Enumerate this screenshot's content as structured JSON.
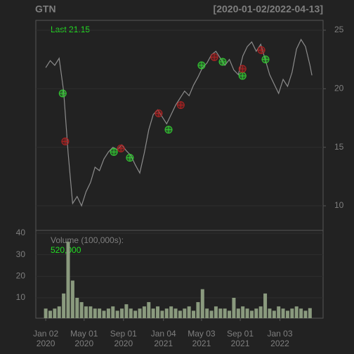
{
  "chart_data": [
    {
      "type": "line",
      "title": "GTN",
      "subtitle": "[2020-01-02/2022-04-13]",
      "annotation": "Last 21.15",
      "x": [
        "2020-01-02",
        "2020-01-16",
        "2020-01-30",
        "2020-02-13",
        "2020-02-27",
        "2020-03-12",
        "2020-03-26",
        "2020-04-09",
        "2020-04-23",
        "2020-05-07",
        "2020-05-21",
        "2020-06-04",
        "2020-06-18",
        "2020-07-02",
        "2020-07-16",
        "2020-07-30",
        "2020-08-13",
        "2020-08-27",
        "2020-09-10",
        "2020-09-24",
        "2020-10-08",
        "2020-10-22",
        "2020-11-05",
        "2020-11-19",
        "2020-12-03",
        "2020-12-17",
        "2020-12-31",
        "2021-01-14",
        "2021-01-28",
        "2021-02-11",
        "2021-02-25",
        "2021-03-11",
        "2021-03-25",
        "2021-04-08",
        "2021-04-22",
        "2021-05-06",
        "2021-05-20",
        "2021-06-03",
        "2021-06-17",
        "2021-07-01",
        "2021-07-15",
        "2021-07-29",
        "2021-08-12",
        "2021-08-26",
        "2021-09-09",
        "2021-09-23",
        "2021-10-07",
        "2021-10-21",
        "2021-11-04",
        "2021-11-18",
        "2021-12-02",
        "2021-12-16",
        "2021-12-30",
        "2022-01-13",
        "2022-01-27",
        "2022-02-10",
        "2022-02-24",
        "2022-03-10",
        "2022-03-24",
        "2022-04-07",
        "2022-04-13"
      ],
      "series": [
        {
          "color": "#8c8c8c",
          "values": [
            21.8,
            22.4,
            22.0,
            22.6,
            19.8,
            14.5,
            10.2,
            10.8,
            10.0,
            11.2,
            12.0,
            13.3,
            13.0,
            14.0,
            14.6,
            15.0,
            14.8,
            15.2,
            14.7,
            14.3,
            13.5,
            12.8,
            14.5,
            16.5,
            17.8,
            18.2,
            17.6,
            17.0,
            17.8,
            18.6,
            19.2,
            19.8,
            19.4,
            20.3,
            21.0,
            21.8,
            22.2,
            22.9,
            23.2,
            22.6,
            22.0,
            22.5,
            21.6,
            21.2,
            22.8,
            23.6,
            24.0,
            23.2,
            23.8,
            22.5,
            21.2,
            20.4,
            19.6,
            20.8,
            20.2,
            21.4,
            23.4,
            24.2,
            23.6,
            22.0,
            21.15
          ]
        }
      ],
      "markers": [
        {
          "color": "#33cc33",
          "x": [
            "2020-02-24",
            "2020-08-02",
            "2020-09-21",
            "2021-01-20",
            "2021-05-03",
            "2021-07-08",
            "2021-09-08",
            "2021-11-19"
          ],
          "values": [
            19.6,
            14.6,
            14.1,
            16.5,
            22.0,
            22.3,
            21.1,
            22.5
          ]
        },
        {
          "color": "#b22222",
          "x": [
            "2020-03-03",
            "2020-08-24",
            "2020-12-20",
            "2021-02-27",
            "2021-06-12",
            "2021-09-08",
            "2021-11-06"
          ],
          "values": [
            15.5,
            14.9,
            17.9,
            18.6,
            22.7,
            21.7,
            23.3
          ]
        }
      ],
      "xlim": [
        "2019-12-02",
        "2022-05-18"
      ],
      "ylim": [
        7.9,
        25.84
      ],
      "yticks": [
        10,
        15,
        20,
        25
      ],
      "grid": true
    },
    {
      "type": "bar",
      "annotation": "Volume (100,000s):",
      "last_label": {
        "value": 5.2,
        "label": "520,000"
      },
      "color": "#8a9a7e",
      "values": [
        5,
        4,
        5,
        6,
        12,
        36,
        18,
        10,
        8,
        6,
        6,
        5,
        5,
        4,
        5,
        6,
        4,
        5,
        7,
        5,
        4,
        5,
        6,
        8,
        5,
        6,
        4,
        5,
        6,
        5,
        4,
        5,
        6,
        4,
        8,
        14,
        5,
        4,
        6,
        5,
        5,
        4,
        10,
        5,
        6,
        5,
        4,
        5,
        6,
        12,
        5,
        4,
        6,
        5,
        4,
        5,
        6,
        5,
        4,
        5.2
      ],
      "ylim": [
        0.54,
        41.3
      ],
      "yticks": [
        10,
        20,
        30,
        40
      ],
      "xticks": [
        {
          "value": "2020-01-02",
          "label": [
            "Jan 02",
            "2020"
          ]
        },
        {
          "value": "2020-05-01",
          "label": [
            "May 01",
            "2020"
          ]
        },
        {
          "value": "2020-09-01",
          "label": [
            "Sep 01",
            "2020"
          ]
        },
        {
          "value": "2021-01-04",
          "label": [
            "Jan 04",
            "2021"
          ]
        },
        {
          "value": "2021-05-03",
          "label": [
            "May 03",
            "2021"
          ]
        },
        {
          "value": "2021-09-01",
          "label": [
            "Sep 01",
            "2021"
          ]
        },
        {
          "value": "2022-01-03",
          "label": [
            "Jan 03",
            "2022"
          ]
        }
      ]
    }
  ]
}
